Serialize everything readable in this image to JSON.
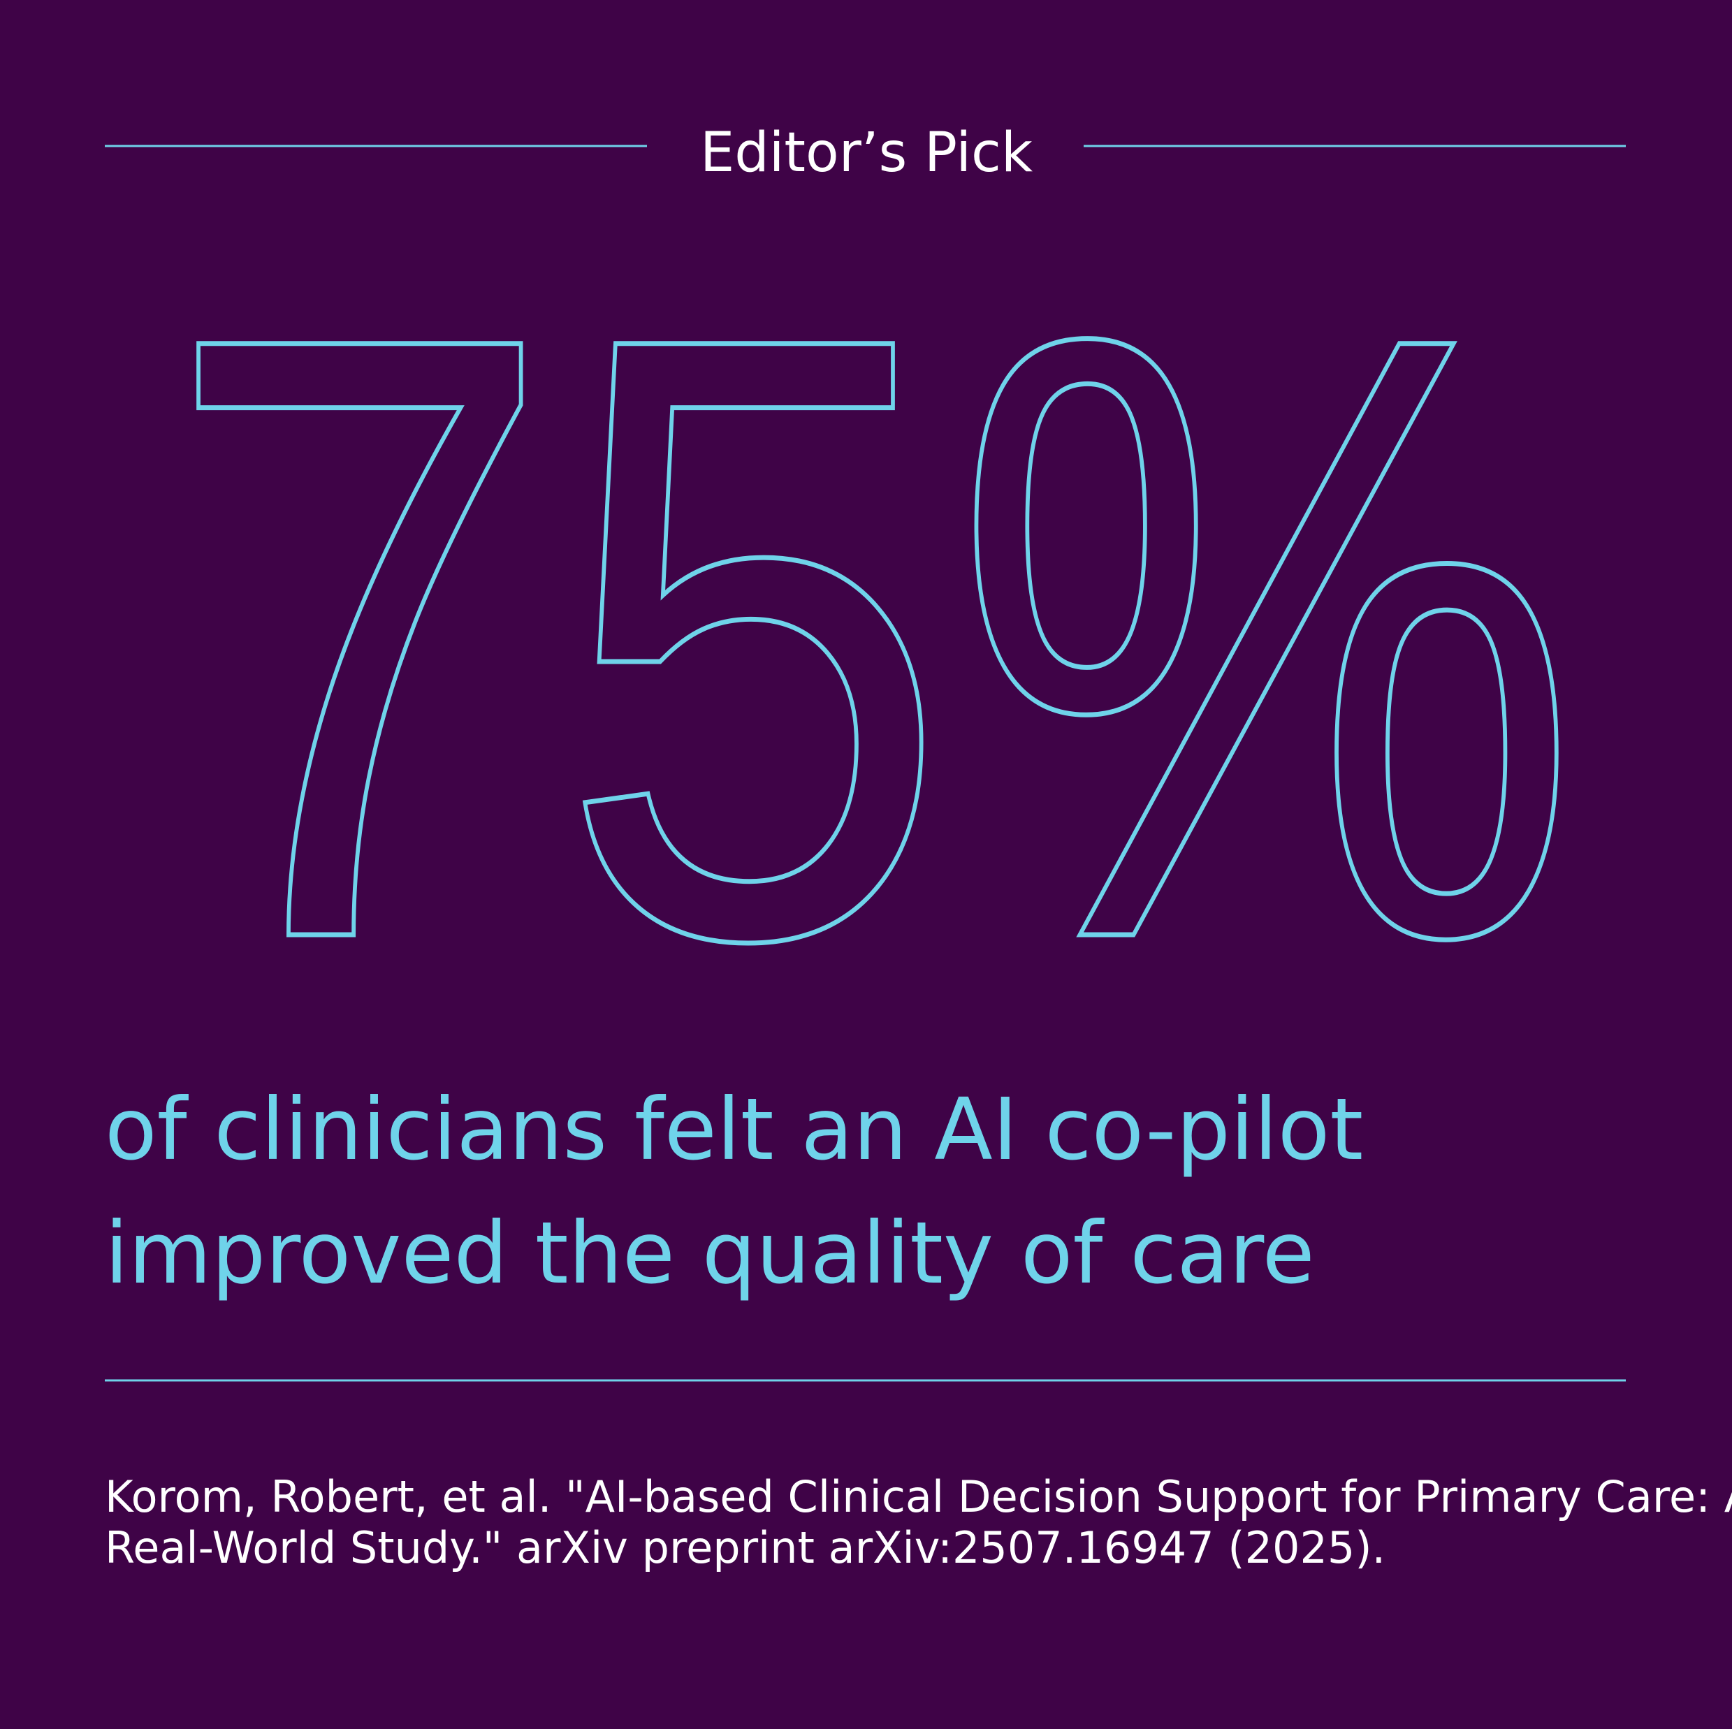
{
  "header": {
    "title": "Editor’s Pick"
  },
  "stat": {
    "value": "75%",
    "description": [
      "of clinicians felt an AI co-pilot",
      "improved the quality of care"
    ]
  },
  "citation": [
    "Korom, Robert, et al. \"AI-based Clinical Decision Support for Primary Care: A",
    "Real-World Study.\" arXiv preprint arXiv:2507.16947 (2025)."
  ]
}
